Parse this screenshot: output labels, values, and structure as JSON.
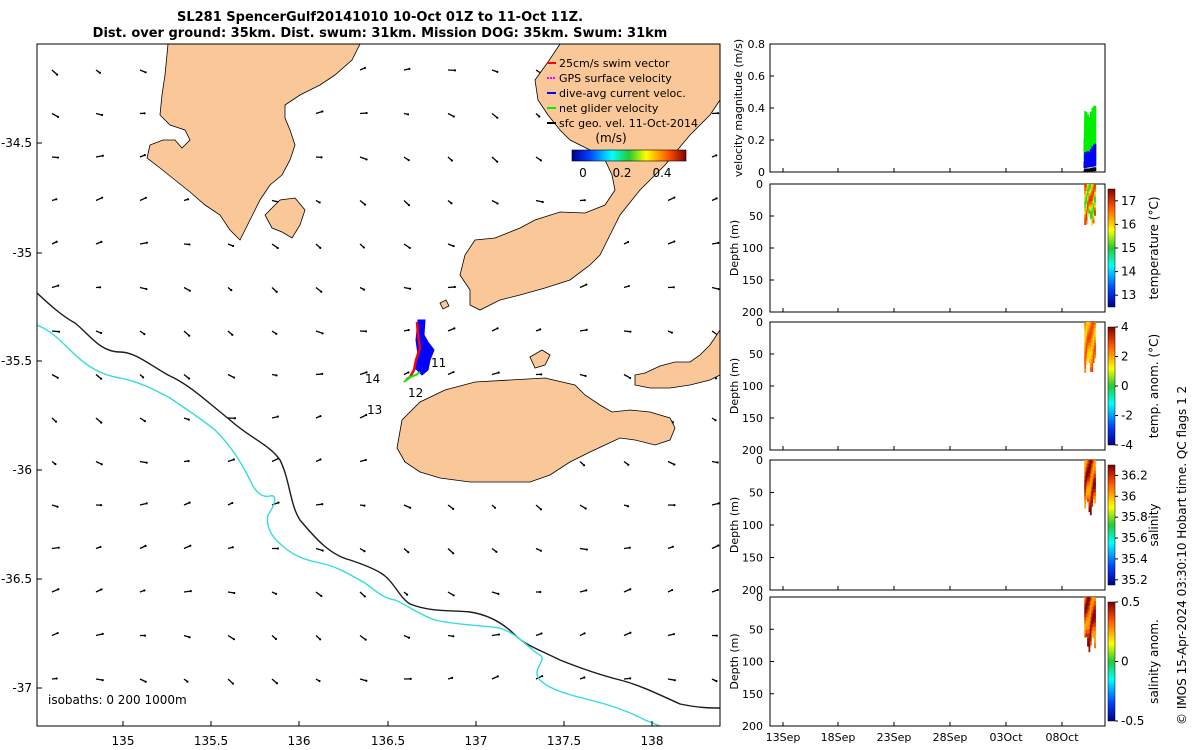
{
  "title": {
    "line1": "SL281 SpencerGulf20141010 10-Oct 01Z to 11-Oct 11Z.",
    "line2": "Dist. over ground: 35km. Dist. swum: 31km. Mission DOG: 35km. Swum: 31km"
  },
  "colors": {
    "land": "#fac898",
    "isobath_200": "#1c1c1c",
    "isobath_1000": "#33dddd",
    "swim_vector": "#ff0000",
    "gps_velocity": "#ff00ff",
    "dive_avg": "#0000ff",
    "net_glider": "#00ee00",
    "sfc_geo": "#000000"
  },
  "map": {
    "x_ticks": [
      "135",
      "135.5",
      "136",
      "136.5",
      "137",
      "137.5",
      "138"
    ],
    "y_ticks": [
      "-34.5",
      "-35",
      "-35.5",
      "-36",
      "-36.5",
      "-37"
    ],
    "legend": [
      {
        "label": "25cm/s swim vector",
        "color": "#ff0000"
      },
      {
        "label": "GPS surface velocity",
        "color": "#ff00ff"
      },
      {
        "label": "dive-avg current veloc.",
        "color": "#0000ff"
      },
      {
        "label": "net glider velocity",
        "color": "#00ee00"
      },
      {
        "label": "sfc geo. vel. 11-Oct-2014",
        "color": "#000000"
      }
    ],
    "colorbar": {
      "label": "(m/s)",
      "ticks": [
        "0",
        "0.2",
        "0.4"
      ]
    },
    "isobaths_label": "isobaths: 0   200  1000m",
    "day_labels": [
      "11",
      "12",
      "13",
      "14"
    ]
  },
  "chart_data": [
    {
      "type": "line",
      "title": "",
      "ylabel": "velocity magnitude (m/s)",
      "ylim": [
        0,
        0.8
      ],
      "y_ticks": [
        "0",
        "0.2",
        "0.4",
        "0.6",
        "0.8"
      ],
      "series": [
        {
          "name": "net glider velocity",
          "x": [
            "2014-10-10",
            "2014-10-11"
          ],
          "values": [
            0.38,
            0.42
          ]
        },
        {
          "name": "dive-avg current veloc.",
          "x": [
            "2014-10-10",
            "2014-10-11"
          ],
          "values": [
            0.12,
            0.18
          ]
        },
        {
          "name": "sfc geo. vel. 11-Oct-2014",
          "x": [
            "2014-10-10",
            "2014-10-11"
          ],
          "values": [
            0.02,
            0.03
          ]
        }
      ]
    },
    {
      "type": "heatmap",
      "ylabel": "Depth (m)",
      "colorbar_label": "temperature (°C)",
      "y_ticks": [
        "0",
        "50",
        "100",
        "150",
        "200"
      ],
      "colorbar_ticks": [
        "13",
        "14",
        "15",
        "16",
        "17"
      ],
      "ylim": [
        200,
        0
      ],
      "clim": [
        12.5,
        17.5
      ],
      "x_range": [
        "2014-10-10",
        "2014-10-11"
      ],
      "depth_max": 65,
      "value_range": [
        15.0,
        17.0
      ]
    },
    {
      "type": "heatmap",
      "ylabel": "Depth (m)",
      "colorbar_label": "temp. anom. (°C)",
      "y_ticks": [
        "0",
        "50",
        "100",
        "150",
        "200"
      ],
      "colorbar_ticks": [
        "-4",
        "-2",
        "0",
        "2",
        "4"
      ],
      "ylim": [
        200,
        0
      ],
      "clim": [
        -4,
        4
      ],
      "x_range": [
        "2014-10-10",
        "2014-10-11"
      ],
      "depth_max": 80,
      "value_range": [
        1.5,
        3.0
      ]
    },
    {
      "type": "heatmap",
      "ylabel": "Depth (m)",
      "colorbar_label": "salinity",
      "y_ticks": [
        "0",
        "50",
        "100",
        "150",
        "200"
      ],
      "colorbar_ticks": [
        "35.2",
        "35.4",
        "35.6",
        "35.8",
        "36",
        "36.2"
      ],
      "ylim": [
        200,
        0
      ],
      "clim": [
        35.15,
        36.3
      ],
      "x_range": [
        "2014-10-10",
        "2014-10-11"
      ],
      "depth_max": 85,
      "value_range": [
        36.0,
        36.3
      ]
    },
    {
      "type": "heatmap",
      "ylabel": "Depth (m)",
      "colorbar_label": "salinity anom.",
      "y_ticks": [
        "0",
        "50",
        "100",
        "150",
        "200"
      ],
      "colorbar_ticks": [
        "0.5",
        "0",
        "-0.5"
      ],
      "ylim": [
        200,
        0
      ],
      "clim": [
        -0.5,
        0.5
      ],
      "x_range": [
        "2014-10-10",
        "2014-10-11"
      ],
      "depth_max": 85,
      "value_range": [
        0.25,
        0.5
      ],
      "x_ticks": [
        "13Sep",
        "18Sep",
        "23Sep",
        "28Sep",
        "03Oct",
        "08Oct"
      ]
    }
  ],
  "credit": "© IMOS 15-Apr-2024 03:30:10 Hobart time. QC flags 1  2"
}
